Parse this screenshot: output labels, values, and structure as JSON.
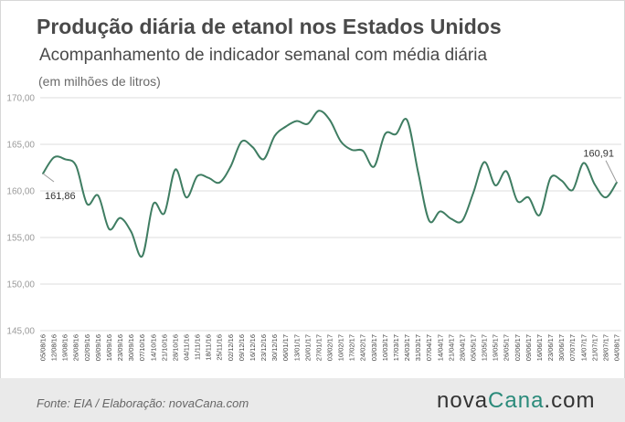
{
  "header": {
    "title": "Produção diária de etanol nos Estados Unidos",
    "subtitle": "Acompanhamento de indicador semanal com média diária",
    "unit": "(em milhões de litros)"
  },
  "footer": {
    "source": "Fonte:  EIA / Elaboração:  novaCana.com",
    "logo_main": "nova",
    "logo_accent": "Cana",
    "logo_tail": ".com"
  },
  "colors": {
    "line": "#3f7d62",
    "grid": "#dddddd",
    "logo_accent": "#2a8a7a"
  },
  "chart_data": {
    "type": "line",
    "title": "Produção diária de etanol nos Estados Unidos",
    "subtitle": "Acompanhamento de indicador semanal com média diária",
    "ylabel": "(em milhões de litros)",
    "ylim": [
      145,
      170
    ],
    "yticks": [
      "145,00",
      "150,00",
      "155,00",
      "160,00",
      "165,00",
      "170,00"
    ],
    "grid": true,
    "x": [
      "05/08/16",
      "12/08/16",
      "19/08/16",
      "26/08/16",
      "02/09/16",
      "09/09/16",
      "16/09/16",
      "23/09/16",
      "30/09/16",
      "07/10/16",
      "14/10/16",
      "21/10/16",
      "28/10/16",
      "04/11/16",
      "11/11/16",
      "18/11/16",
      "25/11/16",
      "02/12/16",
      "09/12/16",
      "16/12/16",
      "23/12/16",
      "30/12/16",
      "06/01/17",
      "13/01/17",
      "20/01/17",
      "27/01/17",
      "03/02/17",
      "10/02/17",
      "17/02/17",
      "24/02/17",
      "03/03/17",
      "10/03/17",
      "17/03/17",
      "24/03/17",
      "31/03/17",
      "07/04/17",
      "14/04/17",
      "21/04/17",
      "28/04/17",
      "05/05/17",
      "12/05/17",
      "19/05/17",
      "26/05/17",
      "02/06/17",
      "09/06/17",
      "16/06/17",
      "23/06/17",
      "30/06/17",
      "07/07/17",
      "14/07/17",
      "21/07/17",
      "28/07/17",
      "04/08/17"
    ],
    "series": [
      {
        "values": [
          161.86,
          163.6,
          163.4,
          162.7,
          158.6,
          159.5,
          155.9,
          157.1,
          155.6,
          153.0,
          158.6,
          157.6,
          162.3,
          159.3,
          161.6,
          161.4,
          160.9,
          162.6,
          165.3,
          164.7,
          163.4,
          165.9,
          166.9,
          167.5,
          167.2,
          168.6,
          167.6,
          165.3,
          164.4,
          164.3,
          162.6,
          166.1,
          166.1,
          167.6,
          162.0,
          156.8,
          157.8,
          157.0,
          156.8,
          159.8,
          163.1,
          160.6,
          162.1,
          158.9,
          159.3,
          157.4,
          161.4,
          161.1,
          160.1,
          163.0,
          160.7,
          159.3,
          160.91
        ]
      }
    ],
    "annotations": [
      {
        "label": "161,86",
        "index": 0
      },
      {
        "label": "160,91",
        "index": 52
      }
    ]
  }
}
